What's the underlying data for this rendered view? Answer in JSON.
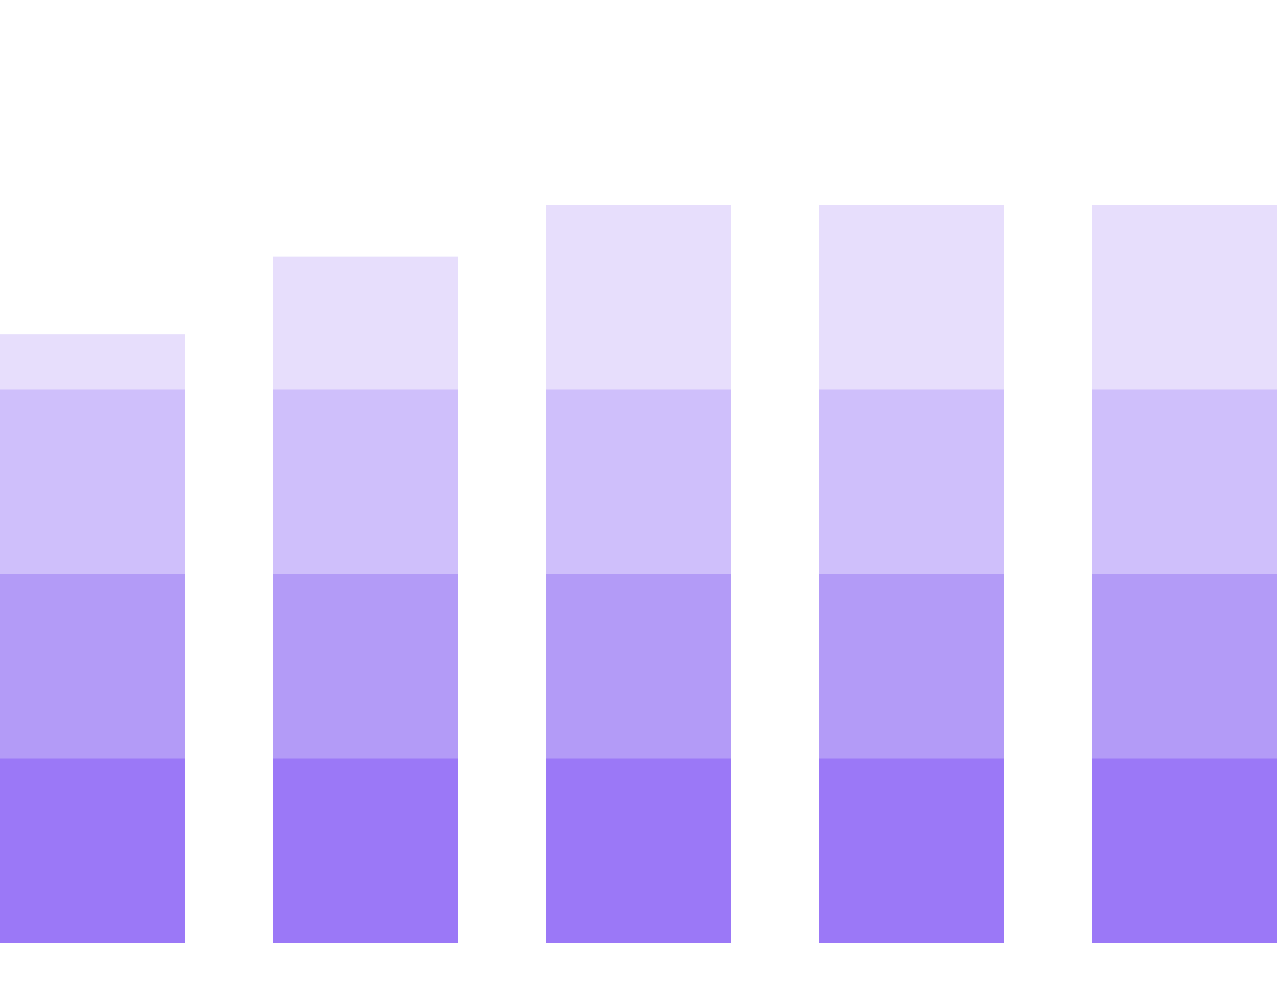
{
  "chart_data": {
    "type": "bar",
    "stacked": true,
    "categories": [
      "",
      "",
      "",
      "",
      ""
    ],
    "series": [
      {
        "values": [
          1,
          1,
          1,
          1,
          1
        ],
        "color": "#9b78f7"
      },
      {
        "values": [
          1,
          1,
          1,
          1,
          1
        ],
        "color": "#b39bf7"
      },
      {
        "values": [
          1,
          1,
          1,
          1,
          1
        ],
        "color": "#cfbffb"
      },
      {
        "values": [
          0.3,
          0.72,
          1,
          1,
          1
        ],
        "color": "#e7defc"
      }
    ],
    "ylim": [
      0,
      4
    ],
    "grid": false,
    "legend": "none",
    "title": "",
    "xlabel": "",
    "ylabel": ""
  }
}
